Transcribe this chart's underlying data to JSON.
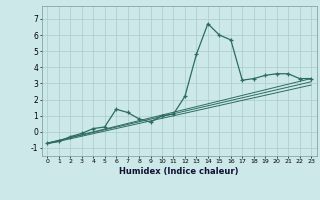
{
  "xlabel": "Humidex (Indice chaleur)",
  "ylabel": "",
  "bg_color": "#cce8e8",
  "grid_color": "#aacccc",
  "line_color": "#2d6b62",
  "xlim": [
    -0.5,
    23.5
  ],
  "ylim": [
    -1.5,
    7.8
  ],
  "yticks": [
    -1,
    0,
    1,
    2,
    3,
    4,
    5,
    6,
    7
  ],
  "xticks": [
    0,
    1,
    2,
    3,
    4,
    5,
    6,
    7,
    8,
    9,
    10,
    11,
    12,
    13,
    14,
    15,
    16,
    17,
    18,
    19,
    20,
    21,
    22,
    23
  ],
  "main_x": [
    0,
    1,
    2,
    3,
    4,
    5,
    6,
    7,
    8,
    9,
    10,
    11,
    12,
    13,
    14,
    15,
    16,
    17,
    18,
    19,
    20,
    21,
    22,
    23
  ],
  "main_y": [
    -0.7,
    -0.6,
    -0.3,
    -0.1,
    0.2,
    0.3,
    1.4,
    1.2,
    0.8,
    0.6,
    1.0,
    1.1,
    2.2,
    4.8,
    6.7,
    6.0,
    5.7,
    3.2,
    3.3,
    3.5,
    3.6,
    3.6,
    3.3,
    3.3
  ],
  "line2_x": [
    0,
    23
  ],
  "line2_y": [
    -0.7,
    3.3
  ],
  "line3_x": [
    0,
    23
  ],
  "line3_y": [
    -0.7,
    3.1
  ],
  "line4_x": [
    0,
    23
  ],
  "line4_y": [
    -0.75,
    2.9
  ]
}
